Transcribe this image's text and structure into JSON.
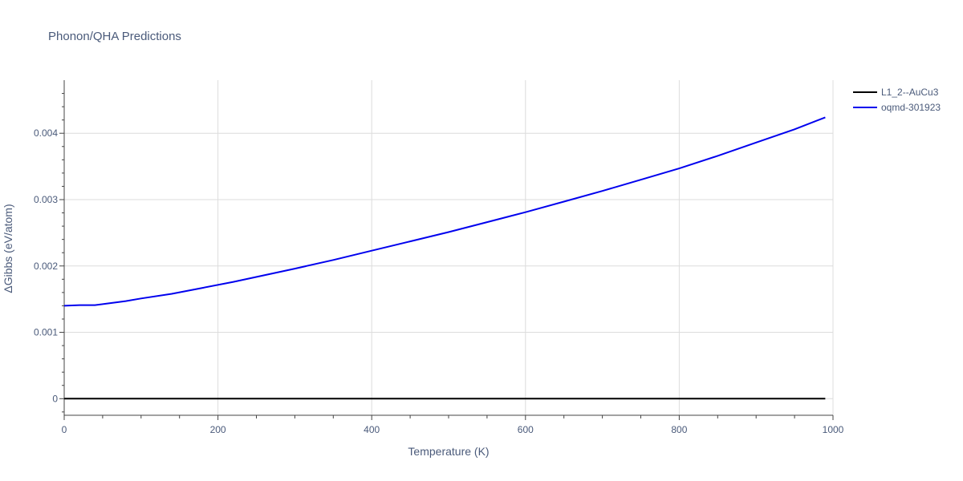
{
  "chart_data": {
    "type": "line",
    "title": "Phonon/QHA Predictions",
    "xlabel": "Temperature (K)",
    "ylabel": "ΔGibbs (eV/atom)",
    "xlim": [
      0,
      1000
    ],
    "ylim": [
      -0.00025,
      0.0048
    ],
    "xticks": [
      0,
      200,
      400,
      600,
      800,
      1000
    ],
    "xtick_labels": [
      "0",
      "200",
      "400",
      "600",
      "800",
      "1000"
    ],
    "yticks": [
      0,
      0.001,
      0.002,
      0.003,
      0.004
    ],
    "ytick_labels": [
      "0",
      "0.001",
      "0.002",
      "0.003",
      "0.004"
    ],
    "grid": true,
    "legend_position": "top-right",
    "series": [
      {
        "name": "L1_2--AuCu3",
        "color": "#000000",
        "x": [
          0,
          990
        ],
        "y": [
          0,
          0
        ]
      },
      {
        "name": "oqmd-301923",
        "color": "#0000ee",
        "x": [
          0,
          20,
          40,
          60,
          80,
          100,
          140,
          180,
          220,
          260,
          300,
          350,
          400,
          450,
          500,
          550,
          600,
          650,
          700,
          750,
          800,
          850,
          900,
          950,
          990
        ],
        "y": [
          0.0014,
          0.00141,
          0.00141,
          0.00144,
          0.00147,
          0.00151,
          0.00158,
          0.00167,
          0.00176,
          0.00186,
          0.00196,
          0.00209,
          0.00223,
          0.00237,
          0.00251,
          0.00266,
          0.00281,
          0.00297,
          0.00313,
          0.0033,
          0.00347,
          0.00366,
          0.00386,
          0.00406,
          0.00424
        ]
      }
    ]
  }
}
